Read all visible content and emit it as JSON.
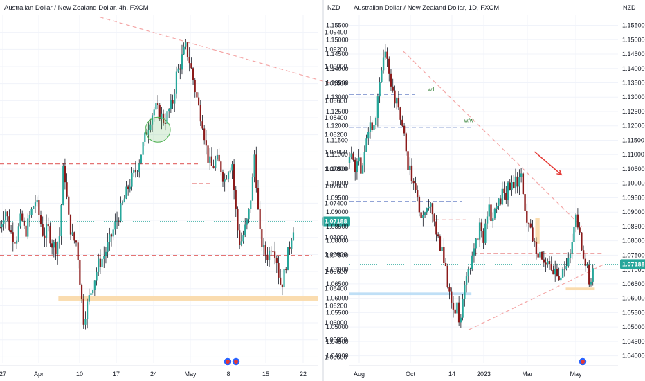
{
  "colors": {
    "up": "#26a69a",
    "down": "#8b1a1a",
    "wick": "#131722",
    "resistance": "#e57373",
    "trendline": "#f4a6a6",
    "blue_level": "#6f86c9",
    "current_price": "#26a69a",
    "zone_orange": "#f9d8a6",
    "zone_blue": "#b8dcf5",
    "circle": "#4caf50",
    "arrow": "#e53935"
  },
  "chart_data": [
    {
      "type": "candlestick",
      "title": "Australian Dollar / New Zealand Dollar, 4h, FXCM",
      "x_ticks": [
        "27",
        "Apr",
        "10",
        "17",
        "24",
        "May",
        "8",
        "15",
        "22"
      ],
      "y_ticks": [
        "1.09400",
        "1.09200",
        "1.09000",
        "1.08800",
        "1.08600",
        "1.08400",
        "1.08200",
        "1.08000",
        "1.07800",
        "1.07600",
        "1.07400",
        "1.07200",
        "1.07000",
        "1.06800",
        "1.06600",
        "1.06400",
        "1.06200",
        "1.06000",
        "1.05800",
        "1.05600"
      ],
      "ylim": [
        1.0553,
        1.096
      ],
      "current_price": "1.07188",
      "close_path": [
        [
          0,
          1.0712
        ],
        [
          4,
          1.0733
        ],
        [
          8,
          1.0706
        ],
        [
          12,
          1.0697
        ],
        [
          16,
          1.0724
        ],
        [
          19,
          1.0704
        ],
        [
          23,
          1.0728
        ],
        [
          27,
          1.0744
        ],
        [
          30,
          1.0722
        ],
        [
          33,
          1.0701
        ],
        [
          36,
          1.0712
        ],
        [
          39,
          1.0693
        ],
        [
          42,
          1.0688
        ],
        [
          45,
          1.0703
        ],
        [
          47,
          1.0762
        ],
        [
          48,
          1.0788
        ],
        [
          50,
          1.0752
        ],
        [
          52,
          1.0718
        ],
        [
          55,
          1.0698
        ],
        [
          58,
          1.0693
        ],
        [
          61,
          1.0635
        ],
        [
          63,
          1.0604
        ],
        [
          66,
          1.0622
        ],
        [
          70,
          1.0645
        ],
        [
          74,
          1.0668
        ],
        [
          78,
          1.0677
        ],
        [
          82,
          1.0693
        ],
        [
          86,
          1.0711
        ],
        [
          90,
          1.0728
        ],
        [
          93,
          1.0741
        ],
        [
          96,
          1.0756
        ],
        [
          100,
          1.0771
        ],
        [
          104,
          1.0784
        ],
        [
          107,
          1.0803
        ],
        [
          110,
          1.0821
        ],
        [
          114,
          1.0843
        ],
        [
          117,
          1.0852
        ],
        [
          120,
          1.0846
        ],
        [
          124,
          1.0836
        ],
        [
          127,
          1.0847
        ],
        [
          130,
          1.0857
        ],
        [
          133,
          1.089
        ],
        [
          136,
          1.0903
        ],
        [
          138,
          1.0915
        ],
        [
          140,
          1.0922
        ],
        [
          142,
          1.0912
        ],
        [
          144,
          1.0898
        ],
        [
          147,
          1.0873
        ],
        [
          150,
          1.0851
        ],
        [
          153,
          1.0833
        ],
        [
          155,
          1.0808
        ],
        [
          157,
          1.0791
        ],
        [
          160,
          1.0781
        ],
        [
          163,
          1.0791
        ],
        [
          166,
          1.0784
        ],
        [
          169,
          1.0766
        ],
        [
          172,
          1.0781
        ],
        [
          175,
          1.0787
        ],
        [
          177,
          1.0743
        ],
        [
          179,
          1.0711
        ],
        [
          181,
          1.0691
        ],
        [
          184,
          1.0706
        ],
        [
          187,
          1.0722
        ],
        [
          190,
          1.0759
        ],
        [
          192,
          1.0801
        ],
        [
          194,
          1.0742
        ],
        [
          196,
          1.0702
        ],
        [
          199,
          1.0683
        ],
        [
          202,
          1.0678
        ],
        [
          205,
          1.0693
        ],
        [
          208,
          1.0681
        ],
        [
          210,
          1.0657
        ],
        [
          212,
          1.0642
        ],
        [
          214,
          1.0655
        ],
        [
          216,
          1.0673
        ],
        [
          218,
          1.0688
        ],
        [
          220,
          1.0704
        ],
        [
          222,
          1.0718
        ]
      ],
      "levels": [
        {
          "kind": "resistance",
          "y": 1.0786,
          "x_from": 0,
          "x_to": 150
        },
        {
          "kind": "resistance",
          "y": 1.0763,
          "x_from": 145,
          "x_to": 160
        },
        {
          "kind": "resistance",
          "y": 1.0679,
          "x_from": 0,
          "x_to": 235
        }
      ],
      "trendline": [
        [
          75,
          1.0958
        ],
        [
          250,
          1.088
        ]
      ],
      "zone": {
        "x_from": 44,
        "x_to": 240,
        "y_from": 1.0631,
        "y_to": 1.0626
      },
      "circle": {
        "x": 119,
        "y": 1.0826
      }
    },
    {
      "type": "candlestick",
      "title": "Australian Dollar / New Zealand Dollar, 1D, FXCM",
      "currency": "NZD",
      "x_ticks": [
        "Aug",
        "Oct",
        "14",
        "2023",
        "Mar",
        "May"
      ],
      "y_ticks": [
        "1.15500",
        "1.15000",
        "1.14500",
        "1.14000",
        "1.13500",
        "1.13000",
        "1.12500",
        "1.12000",
        "1.11500",
        "1.11000",
        "1.10500",
        "1.10000",
        "1.09500",
        "1.09000",
        "1.08500",
        "1.08000",
        "1.07500",
        "1.07000",
        "1.06500",
        "1.06000",
        "1.05500",
        "1.05000",
        "1.04500",
        "1.04000"
      ],
      "ylim": [
        1.0375,
        1.1585
      ],
      "current_price": "1.07188",
      "close_path": [
        [
          0,
          1.107
        ],
        [
          4,
          1.11
        ],
        [
          8,
          1.105
        ],
        [
          12,
          1.109
        ],
        [
          16,
          1.102
        ],
        [
          20,
          1.112
        ],
        [
          24,
          1.116
        ],
        [
          28,
          1.123
        ],
        [
          32,
          1.119
        ],
        [
          36,
          1.121
        ],
        [
          40,
          1.131
        ],
        [
          44,
          1.139
        ],
        [
          48,
          1.144
        ],
        [
          52,
          1.145
        ],
        [
          56,
          1.137
        ],
        [
          60,
          1.131
        ],
        [
          64,
          1.128
        ],
        [
          68,
          1.126
        ],
        [
          72,
          1.121
        ],
        [
          76,
          1.115
        ],
        [
          80,
          1.107
        ],
        [
          84,
          1.104
        ],
        [
          88,
          1.099
        ],
        [
          92,
          1.095
        ],
        [
          96,
          1.092
        ],
        [
          100,
          1.089
        ],
        [
          104,
          1.092
        ],
        [
          108,
          1.089
        ],
        [
          112,
          1.091
        ],
        [
          116,
          1.09
        ],
        [
          120,
          1.083
        ],
        [
          124,
          1.079
        ],
        [
          128,
          1.076
        ],
        [
          132,
          1.07
        ],
        [
          136,
          1.064
        ],
        [
          140,
          1.061
        ],
        [
          144,
          1.054
        ],
        [
          148,
          1.058
        ],
        [
          152,
          1.051
        ],
        [
          156,
          1.062
        ],
        [
          160,
          1.068
        ],
        [
          164,
          1.071
        ],
        [
          168,
          1.073
        ],
        [
          172,
          1.076
        ],
        [
          176,
          1.082
        ],
        [
          180,
          1.085
        ],
        [
          184,
          1.079
        ],
        [
          188,
          1.087
        ],
        [
          192,
          1.092
        ],
        [
          196,
          1.086
        ],
        [
          200,
          1.09
        ],
        [
          204,
          1.094
        ],
        [
          208,
          1.093
        ],
        [
          212,
          1.099
        ],
        [
          216,
          1.096
        ],
        [
          220,
          1.1
        ],
        [
          224,
          1.098
        ],
        [
          228,
          1.102
        ],
        [
          232,
          1.099
        ],
        [
          236,
          1.106
        ],
        [
          240,
          1.094
        ],
        [
          244,
          1.088
        ],
        [
          248,
          1.085
        ],
        [
          252,
          1.08
        ],
        [
          256,
          1.077
        ],
        [
          260,
          1.074
        ],
        [
          264,
          1.076
        ],
        [
          268,
          1.072
        ],
        [
          272,
          1.074
        ],
        [
          276,
          1.07
        ],
        [
          280,
          1.068
        ],
        [
          284,
          1.07
        ],
        [
          288,
          1.066
        ],
        [
          292,
          1.07
        ],
        [
          296,
          1.069
        ],
        [
          300,
          1.072
        ],
        [
          304,
          1.076
        ],
        [
          308,
          1.083
        ],
        [
          312,
          1.088
        ],
        [
          316,
          1.084
        ],
        [
          320,
          1.078
        ],
        [
          324,
          1.073
        ],
        [
          328,
          1.07
        ],
        [
          332,
          1.064
        ],
        [
          335,
          1.068
        ],
        [
          337,
          1.0719
        ]
      ],
      "levels": [
        {
          "kind": "blue_level",
          "y": 1.131,
          "x_from": 0,
          "x_to": 90
        },
        {
          "kind": "blue_level",
          "y": 1.1195,
          "x_from": 0,
          "x_to": 170
        },
        {
          "kind": "blue_level",
          "y": 1.0937,
          "x_from": 0,
          "x_to": 155
        },
        {
          "kind": "resistance",
          "y": 1.0873,
          "x_from": 118,
          "x_to": 160
        },
        {
          "kind": "resistance",
          "y": 1.0756,
          "x_from": 170,
          "x_to": 350
        }
      ],
      "labels": [
        {
          "text": "w1",
          "x": 108,
          "y": 1.132
        },
        {
          "text": "w/w",
          "x": 158,
          "y": 1.1212
        }
      ],
      "trendline_top": [
        [
          74,
          1.146
        ],
        [
          320,
          1.085
        ]
      ],
      "trendline_bottom": [
        [
          164,
          1.049
        ],
        [
          352,
          1.072
        ]
      ],
      "zone_orange": {
        "x_from": 298,
        "x_to": 338,
        "y_from": 1.0637,
        "y_to": 1.0628
      },
      "zone_blue": {
        "x_from": 0,
        "x_to": 168,
        "y_from": 1.062,
        "y_to": 1.0611
      },
      "zone_orange_vertical": {
        "x_from": 256,
        "x_to": 262,
        "y_from": 1.088,
        "y_to": 1.079
      },
      "arrow": {
        "from": [
          255,
          1.111
        ],
        "to": [
          292,
          1.103
        ]
      }
    }
  ]
}
